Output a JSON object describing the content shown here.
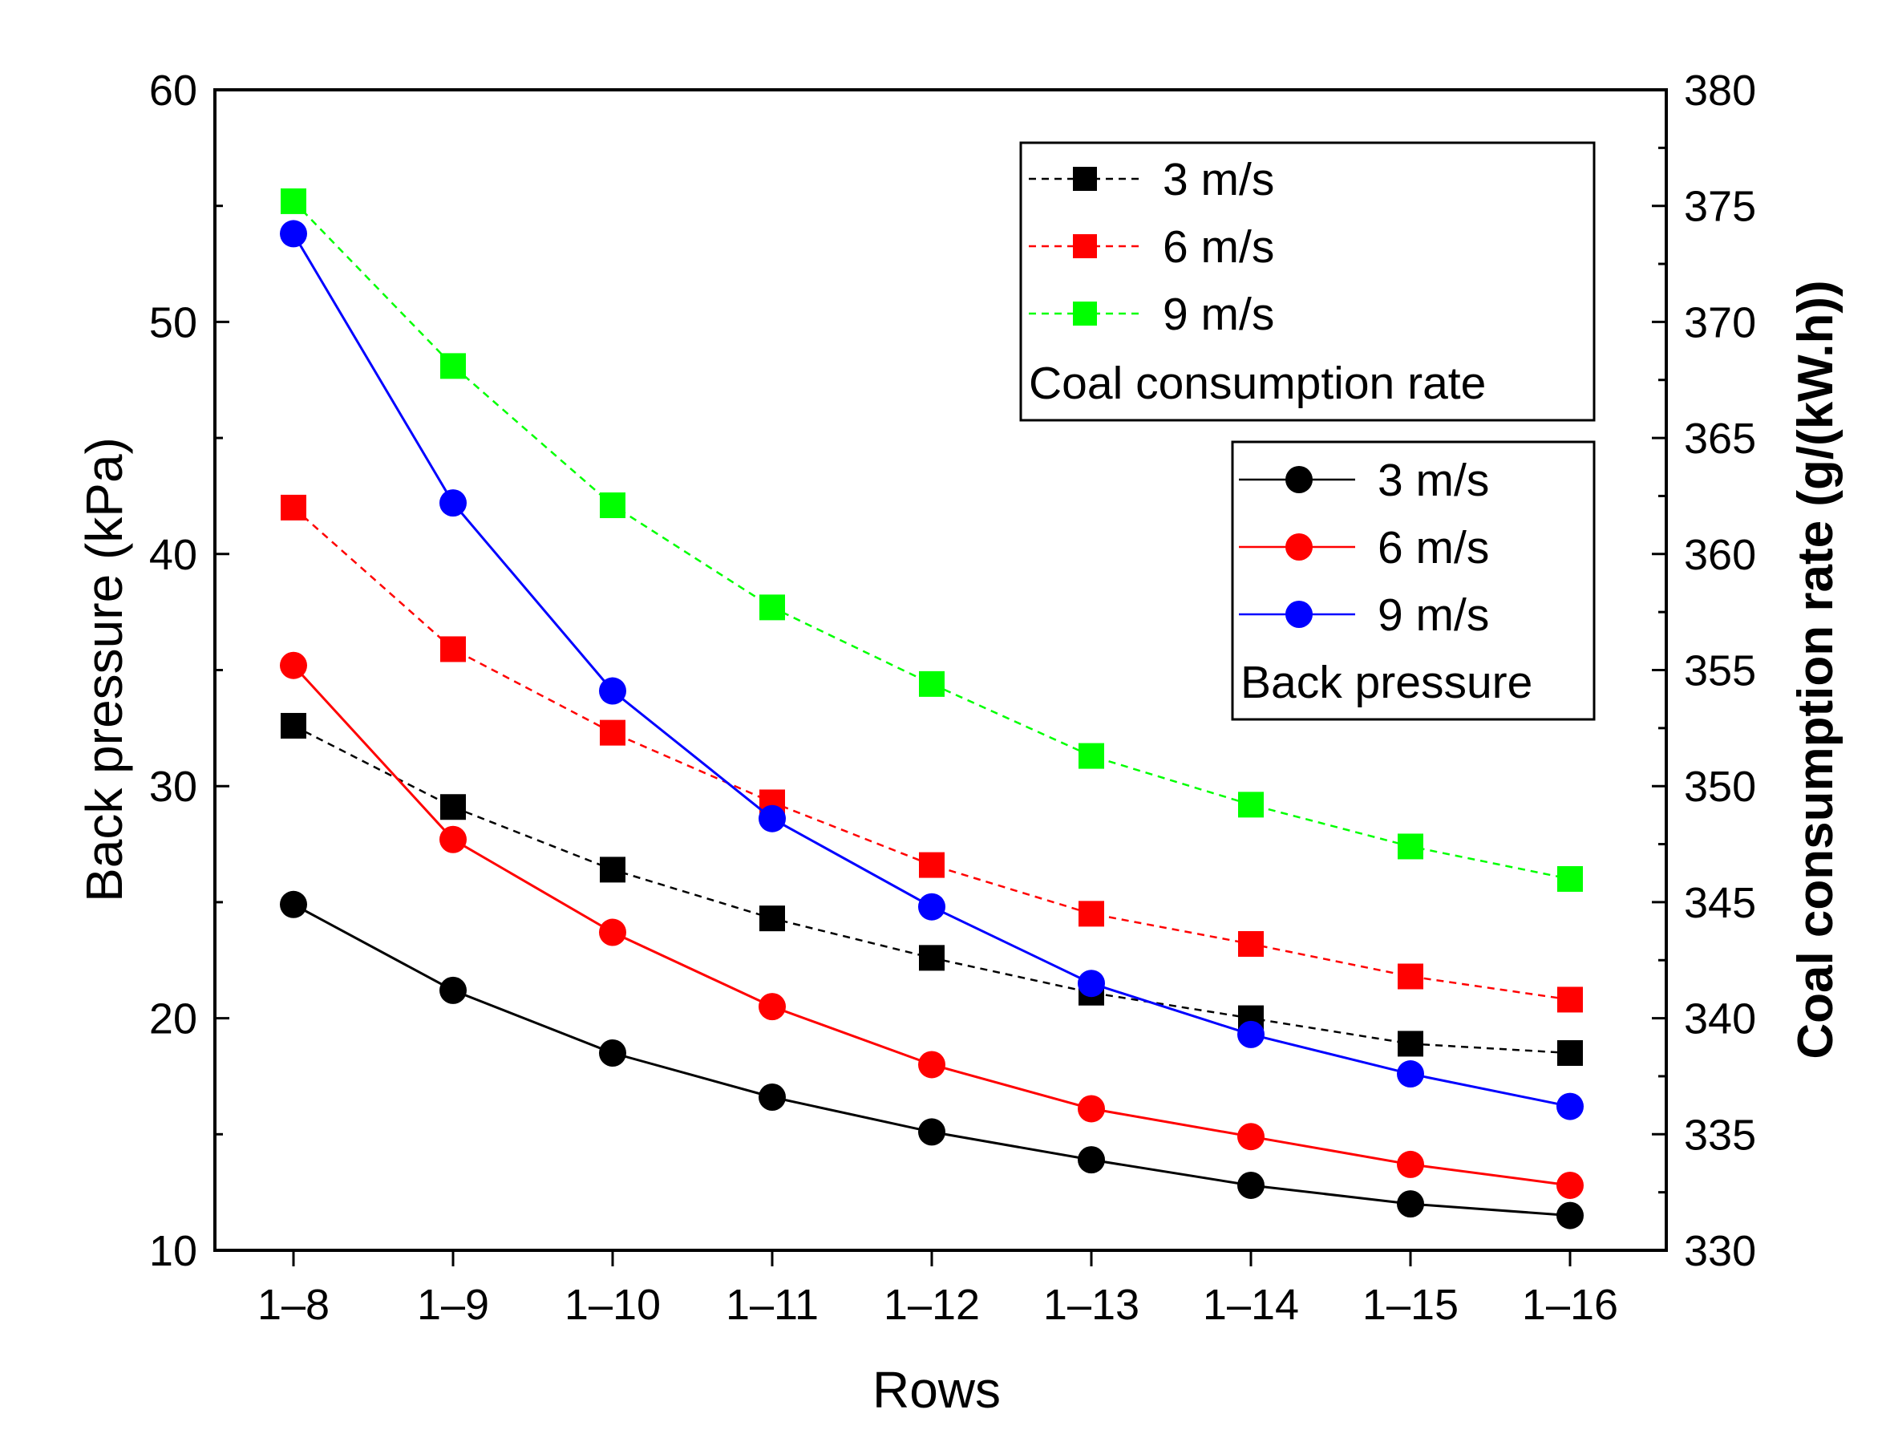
{
  "chart_data": {
    "type": "line",
    "xlabel": "Rows",
    "ylabel": "Back pressure (kPa)",
    "y2label": "Coal consumption rate (g/(kW.h))",
    "categories": [
      "1–8",
      "1–9",
      "1–10",
      "1–11",
      "1–12",
      "1–13",
      "1–14",
      "1–15",
      "1–16"
    ],
    "ylim": [
      10,
      60
    ],
    "yticks": [
      10,
      20,
      30,
      40,
      50,
      60
    ],
    "y2lim": [
      330,
      380
    ],
    "y2ticks": [
      330,
      335,
      340,
      345,
      350,
      355,
      360,
      365,
      370,
      375,
      380
    ],
    "series": [
      {
        "name": "3 m/s",
        "group": "Back pressure",
        "axis": "left",
        "color": "#000000",
        "marker": "circle",
        "line": "solid",
        "values": [
          24.9,
          21.2,
          18.5,
          16.6,
          15.1,
          13.9,
          12.8,
          12.0,
          11.5
        ]
      },
      {
        "name": "6 m/s",
        "group": "Back pressure",
        "axis": "left",
        "color": "#ff0000",
        "marker": "circle",
        "line": "solid",
        "values": [
          35.2,
          27.7,
          23.7,
          20.5,
          18.0,
          16.1,
          14.9,
          13.7,
          12.8
        ]
      },
      {
        "name": "9 m/s",
        "group": "Back pressure",
        "axis": "left",
        "color": "#0000ff",
        "marker": "circle",
        "line": "solid",
        "values": [
          53.8,
          42.2,
          34.1,
          28.6,
          24.8,
          21.5,
          19.3,
          17.6,
          16.2
        ]
      },
      {
        "name": "3 m/s",
        "group": "Coal consumption rate",
        "axis": "right",
        "color": "#000000",
        "marker": "square",
        "line": "dashed",
        "values": [
          352.6,
          349.1,
          346.4,
          344.3,
          342.6,
          341.1,
          340.0,
          338.9,
          338.5
        ]
      },
      {
        "name": "6 m/s",
        "group": "Coal consumption rate",
        "axis": "right",
        "color": "#ff0000",
        "marker": "square",
        "line": "dashed",
        "values": [
          362.0,
          355.9,
          352.3,
          349.3,
          346.6,
          344.5,
          343.2,
          341.8,
          340.8
        ]
      },
      {
        "name": "9 m/s",
        "group": "Coal consumption rate",
        "axis": "right",
        "color": "#00ff00",
        "marker": "square",
        "line": "dashed",
        "values": [
          375.2,
          368.1,
          362.1,
          357.7,
          354.4,
          351.3,
          349.2,
          347.4,
          346.0
        ]
      }
    ],
    "legends": [
      {
        "title": "Coal consumption rate",
        "location": "top-right",
        "entries": [
          "3 m/s",
          "6 m/s",
          "9 m/s"
        ]
      },
      {
        "title": "Back pressure",
        "location": "upper-right",
        "entries": [
          "3 m/s",
          "6 m/s",
          "9 m/s"
        ]
      }
    ]
  }
}
